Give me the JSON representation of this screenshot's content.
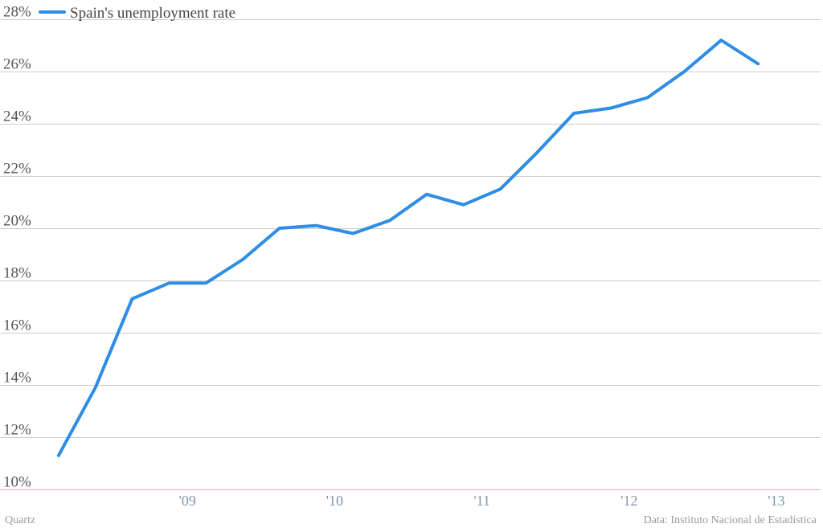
{
  "chart_data": {
    "type": "line",
    "title": "",
    "xlabel": "",
    "ylabel": "",
    "ylim": [
      10,
      28
    ],
    "yticks": [
      "10%",
      "12%",
      "14%",
      "16%",
      "18%",
      "20%",
      "22%",
      "24%",
      "26%",
      "28%"
    ],
    "ytick_values": [
      10,
      12,
      14,
      16,
      18,
      20,
      22,
      24,
      26,
      28
    ],
    "xlim": [
      2008.0,
      2013.3
    ],
    "xticks": [
      "'09",
      "'10",
      "'11",
      "'12",
      "'13"
    ],
    "xtick_values": [
      2009,
      2010,
      2011,
      2012,
      2013
    ],
    "grid": true,
    "legend": "top-left",
    "series": [
      {
        "name": "Spain's unemployment rate",
        "color": "#2e8de4",
        "x": [
          2008.125,
          2008.375,
          2008.625,
          2008.875,
          2009.125,
          2009.375,
          2009.625,
          2009.875,
          2010.125,
          2010.375,
          2010.625,
          2010.875,
          2011.125,
          2011.375,
          2011.625,
          2011.875,
          2012.125,
          2012.375,
          2012.625,
          2012.875
        ],
        "values": [
          11.3,
          13.9,
          17.3,
          17.9,
          17.9,
          18.8,
          20.0,
          20.1,
          19.8,
          20.3,
          21.3,
          20.9,
          21.5,
          22.9,
          24.4,
          24.6,
          25.0,
          26.0,
          27.2,
          26.3
        ]
      }
    ]
  },
  "footer": {
    "credit_left": "Quartz",
    "credit_right": "Data: Instituto Nacional de Estadística"
  },
  "colors": {
    "line": "#2e8de4",
    "grid": "#cccccc",
    "baseline": "#e9a0e9",
    "ytick_text": "#555555",
    "xtick_text": "#7f96ad",
    "footer_text": "#9a9a9a"
  }
}
